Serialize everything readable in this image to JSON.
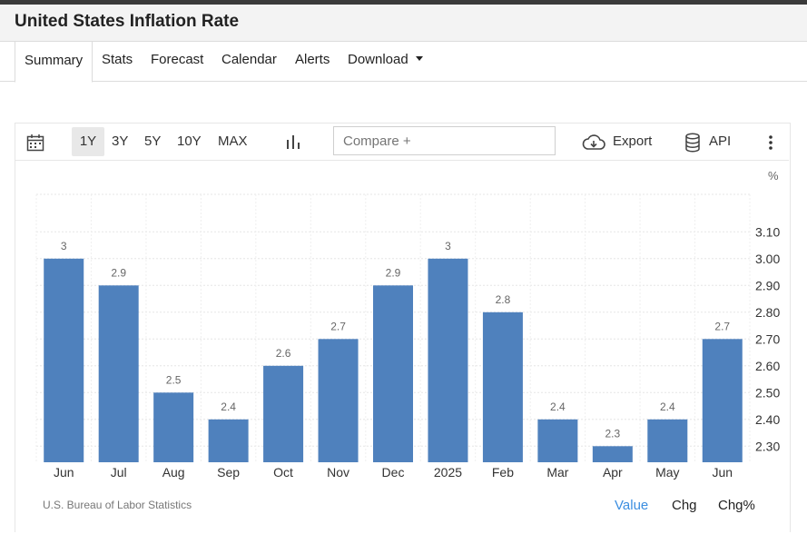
{
  "header": {
    "title": "United States Inflation Rate"
  },
  "tabs": {
    "summary": "Summary",
    "stats": "Stats",
    "forecast": "Forecast",
    "calendar": "Calendar",
    "alerts": "Alerts",
    "download": "Download"
  },
  "toolbar": {
    "ranges": [
      "1Y",
      "3Y",
      "5Y",
      "10Y",
      "MAX"
    ],
    "active_range": "1Y",
    "compare_placeholder": "Compare +",
    "export_label": "Export",
    "api_label": "API"
  },
  "chart_data": {
    "type": "bar",
    "categories": [
      "Jun",
      "Jul",
      "Aug",
      "Sep",
      "Oct",
      "Nov",
      "Dec",
      "2025",
      "Feb",
      "Mar",
      "Apr",
      "May",
      "Jun"
    ],
    "values": [
      3,
      2.9,
      2.5,
      2.4,
      2.6,
      2.7,
      2.9,
      3,
      2.8,
      2.4,
      2.3,
      2.4,
      2.7
    ],
    "data_labels": [
      "3",
      "2.9",
      "2.5",
      "2.4",
      "2.6",
      "2.7",
      "2.9",
      "3",
      "2.8",
      "2.4",
      "2.3",
      "2.4",
      "2.7"
    ],
    "y_ticks": [
      "3.10",
      "3.00",
      "2.90",
      "2.80",
      "2.70",
      "2.60",
      "2.50",
      "2.40",
      "2.30"
    ],
    "ylabel": "%",
    "ylim": [
      2.24,
      3.24
    ],
    "bar_color": "#4f81bd",
    "grid": true
  },
  "source": "U.S. Bureau of Labor Statistics",
  "bottom_tabs": [
    "Value",
    "Chg",
    "Chg%"
  ],
  "active_bottom_tab": "Value",
  "colors": {
    "accent": "#3b8ee0",
    "bar": "#4f81bd"
  }
}
